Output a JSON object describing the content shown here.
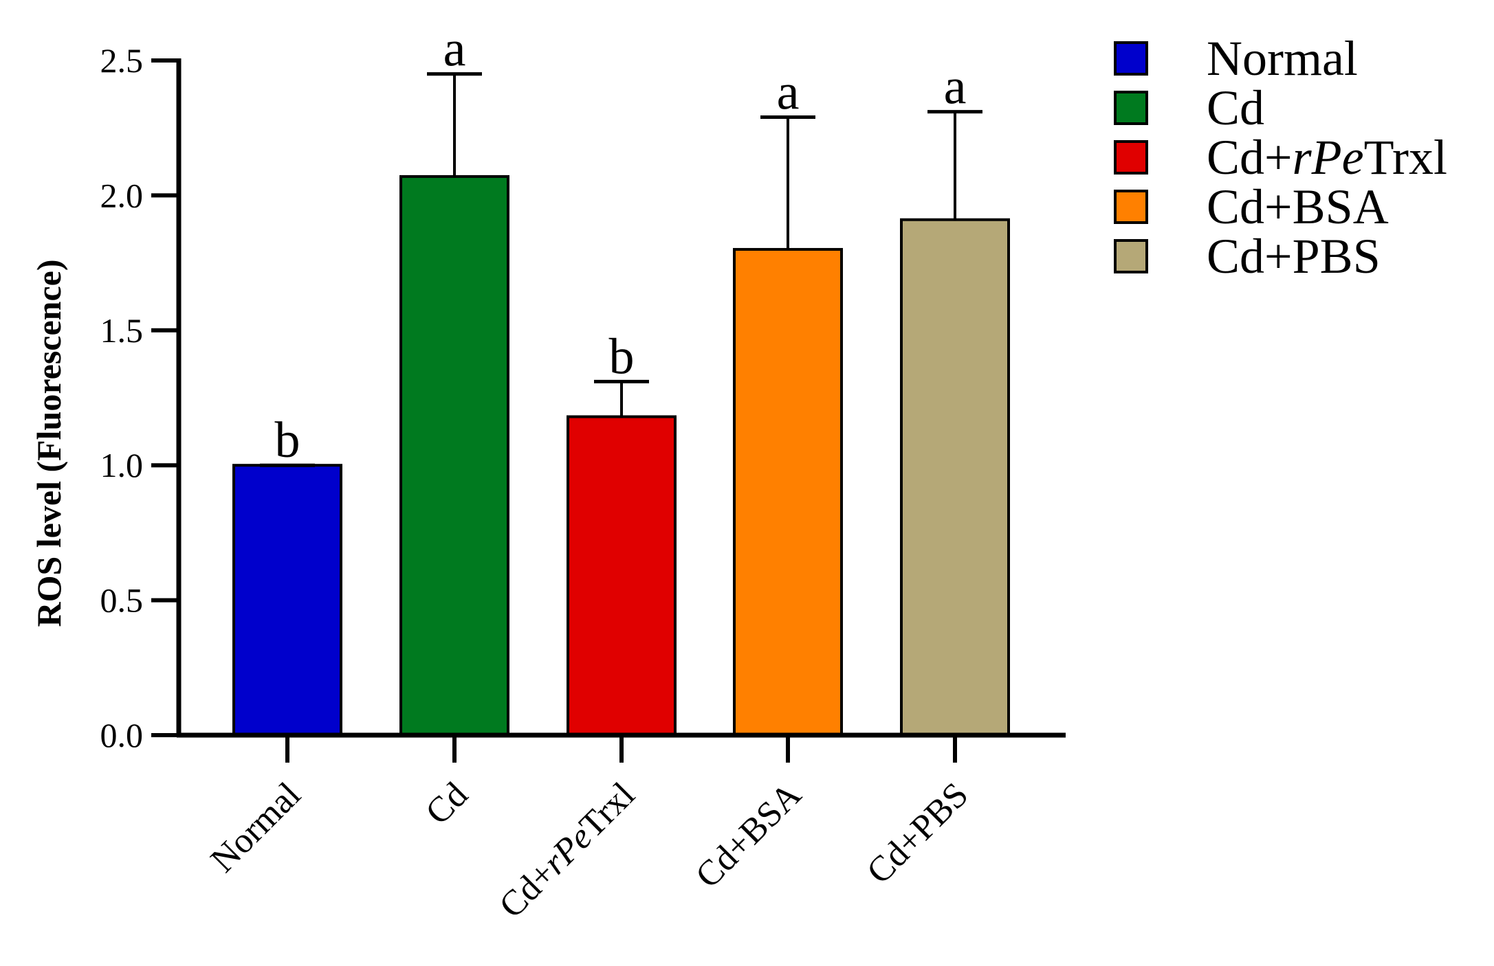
{
  "chart_data": {
    "type": "bar",
    "title": "",
    "xlabel": "",
    "ylabel": "ROS level (Fluorescence)",
    "ylim": [
      0,
      2.5
    ],
    "yticks": [
      "0.0",
      "0.5",
      "1.0",
      "1.5",
      "2.0",
      "2.5"
    ],
    "grid": false,
    "legend_position": "right",
    "categories": [
      {
        "prefix": "Normal",
        "italic": "",
        "suffix": ""
      },
      {
        "prefix": "Cd",
        "italic": "",
        "suffix": ""
      },
      {
        "prefix": "Cd+",
        "italic": "rPe",
        "suffix": "Trxl"
      },
      {
        "prefix": "Cd+BSA",
        "italic": "",
        "suffix": ""
      },
      {
        "prefix": "Cd+PBS",
        "italic": "",
        "suffix": ""
      }
    ],
    "values": [
      1.0,
      2.07,
      1.18,
      1.8,
      1.91
    ],
    "errors": [
      0.0,
      0.38,
      0.13,
      0.49,
      0.4
    ],
    "significance": [
      "b",
      "a",
      "b",
      "a",
      "a"
    ],
    "colors": [
      "#0000CC",
      "#007A1F",
      "#E00000",
      "#FF8000",
      "#B5A877"
    ],
    "legend": [
      {
        "prefix": "Normal",
        "italic": "",
        "suffix": ""
      },
      {
        "prefix": "Cd",
        "italic": "",
        "suffix": ""
      },
      {
        "prefix": "Cd+",
        "italic": "rPe",
        "suffix": "Trxl"
      },
      {
        "prefix": "Cd+BSA",
        "italic": "",
        "suffix": ""
      },
      {
        "prefix": "Cd+PBS",
        "italic": "",
        "suffix": ""
      }
    ]
  }
}
